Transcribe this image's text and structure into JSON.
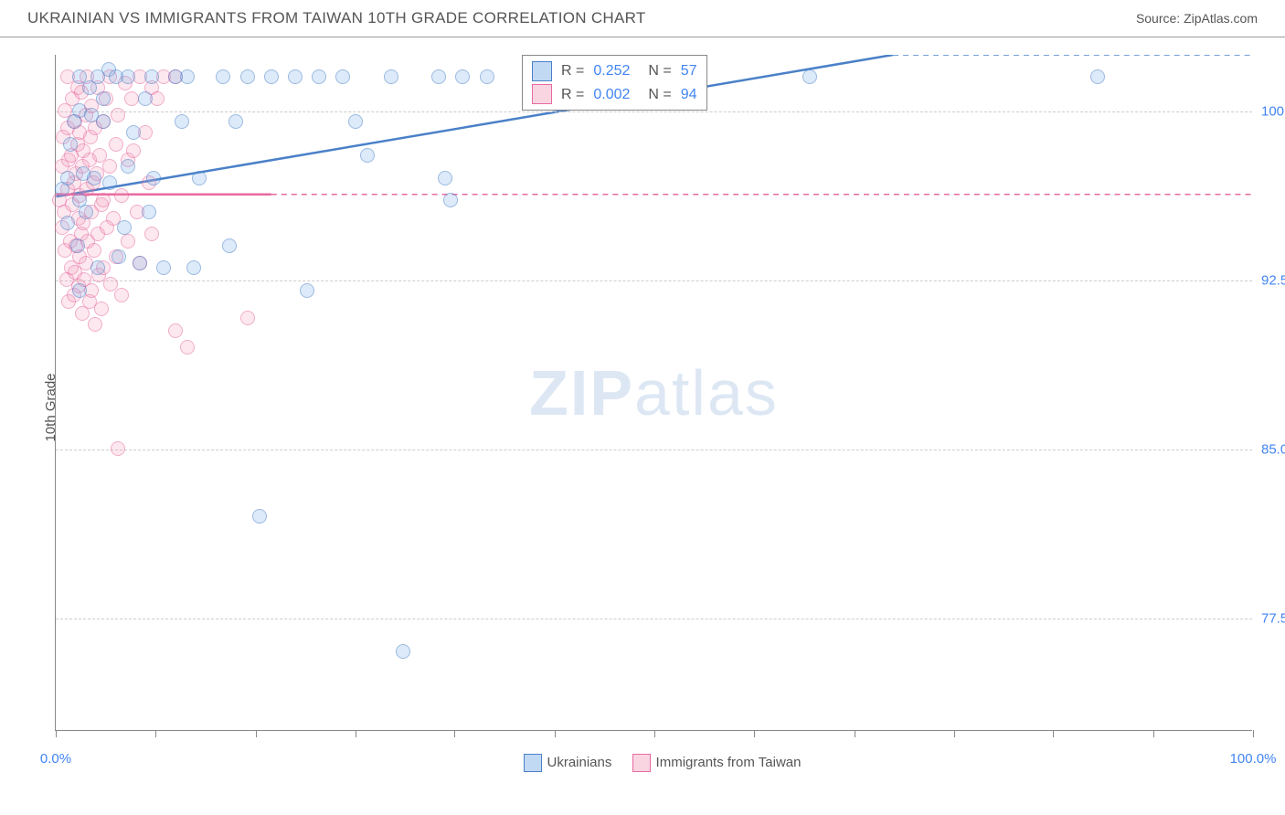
{
  "header": {
    "title": "UKRAINIAN VS IMMIGRANTS FROM TAIWAN 10TH GRADE CORRELATION CHART",
    "source": "Source: ZipAtlas.com"
  },
  "chart": {
    "type": "scatter",
    "ylabel": "10th Grade",
    "background_color": "#ffffff",
    "grid_color": "#cccccc",
    "axis_color": "#888888",
    "label_color": "#4285f4",
    "title_color": "#555555",
    "title_fontsize": 17,
    "label_fontsize": 15,
    "marker_radius": 8,
    "marker_opacity": 0.55,
    "xlim": [
      0,
      100
    ],
    "ylim": [
      72.5,
      102.5
    ],
    "x_ticks": [
      0,
      8.3,
      16.7,
      25,
      33.3,
      41.7,
      50,
      58.3,
      66.7,
      75,
      83.3,
      91.7,
      100
    ],
    "x_tick_labels": {
      "0": "0.0%",
      "100": "100.0%"
    },
    "y_ticks": [
      77.5,
      85.0,
      92.5,
      100.0
    ],
    "y_tick_labels": [
      "77.5%",
      "85.0%",
      "92.5%",
      "100.0%"
    ],
    "watermark": "ZIPatlas",
    "series": [
      {
        "name": "Ukrainians",
        "color_fill": "rgba(120,170,230,0.45)",
        "color_stroke": "#4a80c8",
        "r_value": "0.252",
        "n_value": "57",
        "trend": {
          "x1": 0,
          "y1": 96.2,
          "x2": 70,
          "y2": 102.5,
          "dash": false,
          "width": 2.5,
          "extend_dash_x2": 100,
          "extend_dash_y2": 105
        },
        "points": [
          [
            0.5,
            96.5
          ],
          [
            1,
            97
          ],
          [
            1,
            95
          ],
          [
            1.2,
            98.5
          ],
          [
            1.5,
            99.5
          ],
          [
            1.8,
            94
          ],
          [
            2,
            101.5
          ],
          [
            2,
            100
          ],
          [
            2,
            96
          ],
          [
            2,
            92
          ],
          [
            2.3,
            97.2
          ],
          [
            2.5,
            95.5
          ],
          [
            2.8,
            101
          ],
          [
            3,
            99.8
          ],
          [
            3.2,
            97
          ],
          [
            3.5,
            93
          ],
          [
            3.5,
            101.5
          ],
          [
            4,
            100.5
          ],
          [
            4,
            99.5
          ],
          [
            4.4,
            101.8
          ],
          [
            4.5,
            96.8
          ],
          [
            5,
            101.5
          ],
          [
            5.3,
            93.5
          ],
          [
            5.7,
            94.8
          ],
          [
            6,
            97.5
          ],
          [
            6,
            101.5
          ],
          [
            6.5,
            99
          ],
          [
            7,
            93.2
          ],
          [
            7.5,
            100.5
          ],
          [
            7.8,
            95.5
          ],
          [
            8,
            101.5
          ],
          [
            8.2,
            97
          ],
          [
            9,
            93
          ],
          [
            10,
            101.5
          ],
          [
            10.5,
            99.5
          ],
          [
            11,
            101.5
          ],
          [
            11.5,
            93
          ],
          [
            12,
            97
          ],
          [
            14,
            101.5
          ],
          [
            14.5,
            94
          ],
          [
            15,
            99.5
          ],
          [
            16,
            101.5
          ],
          [
            17,
            82
          ],
          [
            18,
            101.5
          ],
          [
            20,
            101.5
          ],
          [
            21,
            92
          ],
          [
            22,
            101.5
          ],
          [
            24,
            101.5
          ],
          [
            25,
            99.5
          ],
          [
            26,
            98
          ],
          [
            28,
            101.5
          ],
          [
            29,
            76
          ],
          [
            32,
            101.5
          ],
          [
            32.5,
            97
          ],
          [
            33,
            96
          ],
          [
            34,
            101.5
          ],
          [
            36,
            101.5
          ],
          [
            63,
            101.5
          ],
          [
            87,
            101.5
          ]
        ]
      },
      {
        "name": "Immigrants from Taiwan",
        "color_fill": "rgba(240,150,180,0.4)",
        "color_stroke": "#e86aa0",
        "r_value": "0.002",
        "n_value": "94",
        "trend": {
          "x1": 0,
          "y1": 96.3,
          "x2": 18,
          "y2": 96.3,
          "dash": false,
          "width": 2.5,
          "extend_dash_x2": 100,
          "extend_dash_y2": 96.3
        },
        "points": [
          [
            0.3,
            96
          ],
          [
            0.5,
            97.5
          ],
          [
            0.5,
            94.8
          ],
          [
            0.6,
            98.8
          ],
          [
            0.7,
            95.5
          ],
          [
            0.8,
            93.8
          ],
          [
            0.8,
            100
          ],
          [
            0.9,
            92.5
          ],
          [
            1,
            96.5
          ],
          [
            1,
            99.2
          ],
          [
            1,
            101.5
          ],
          [
            1.1,
            97.8
          ],
          [
            1.1,
            91.5
          ],
          [
            1.2,
            94.2
          ],
          [
            1.3,
            98
          ],
          [
            1.3,
            93
          ],
          [
            1.4,
            95.8
          ],
          [
            1.4,
            100.5
          ],
          [
            1.5,
            96.8
          ],
          [
            1.5,
            91.8
          ],
          [
            1.6,
            99.5
          ],
          [
            1.6,
            92.8
          ],
          [
            1.7,
            97.2
          ],
          [
            1.7,
            94
          ],
          [
            1.8,
            98.5
          ],
          [
            1.8,
            101
          ],
          [
            1.9,
            95.2
          ],
          [
            1.9,
            92.2
          ],
          [
            2,
            99
          ],
          [
            2,
            96.2
          ],
          [
            2,
            93.5
          ],
          [
            2.1,
            100.8
          ],
          [
            2.1,
            94.5
          ],
          [
            2.2,
            91
          ],
          [
            2.2,
            97.5
          ],
          [
            2.3,
            98.2
          ],
          [
            2.3,
            95
          ],
          [
            2.4,
            92.5
          ],
          [
            2.5,
            99.8
          ],
          [
            2.5,
            93.2
          ],
          [
            2.6,
            96.5
          ],
          [
            2.6,
            101.5
          ],
          [
            2.7,
            94.2
          ],
          [
            2.8,
            97.8
          ],
          [
            2.8,
            91.5
          ],
          [
            2.9,
            98.8
          ],
          [
            3,
            95.5
          ],
          [
            3,
            92
          ],
          [
            3,
            100.2
          ],
          [
            3.1,
            96.8
          ],
          [
            3.2,
            93.8
          ],
          [
            3.3,
            99.2
          ],
          [
            3.3,
            90.5
          ],
          [
            3.4,
            97.2
          ],
          [
            3.5,
            94.5
          ],
          [
            3.5,
            101
          ],
          [
            3.6,
            92.7
          ],
          [
            3.7,
            98
          ],
          [
            3.8,
            95.8
          ],
          [
            3.8,
            91.2
          ],
          [
            4,
            99.5
          ],
          [
            4,
            96
          ],
          [
            4,
            93
          ],
          [
            4.2,
            100.5
          ],
          [
            4.3,
            94.8
          ],
          [
            4.5,
            97.5
          ],
          [
            4.5,
            101.5
          ],
          [
            4.6,
            92.3
          ],
          [
            4.8,
            95.2
          ],
          [
            5,
            98.5
          ],
          [
            5,
            93.5
          ],
          [
            5.2,
            85
          ],
          [
            5.2,
            99.8
          ],
          [
            5.5,
            96.2
          ],
          [
            5.5,
            91.8
          ],
          [
            5.8,
            101.2
          ],
          [
            6,
            94.2
          ],
          [
            6,
            97.8
          ],
          [
            6.3,
            100.5
          ],
          [
            6.5,
            98.2
          ],
          [
            6.8,
            95.5
          ],
          [
            7,
            101.5
          ],
          [
            7,
            93.2
          ],
          [
            7.5,
            99
          ],
          [
            7.8,
            96.8
          ],
          [
            8,
            94.5
          ],
          [
            8,
            101
          ],
          [
            8.5,
            100.5
          ],
          [
            9,
            101.5
          ],
          [
            10,
            90.2
          ],
          [
            10,
            101.5
          ],
          [
            11,
            89.5
          ],
          [
            16,
            90.8
          ]
        ]
      }
    ],
    "legend_bottom": [
      "Ukrainians",
      "Immigrants from Taiwan"
    ]
  }
}
